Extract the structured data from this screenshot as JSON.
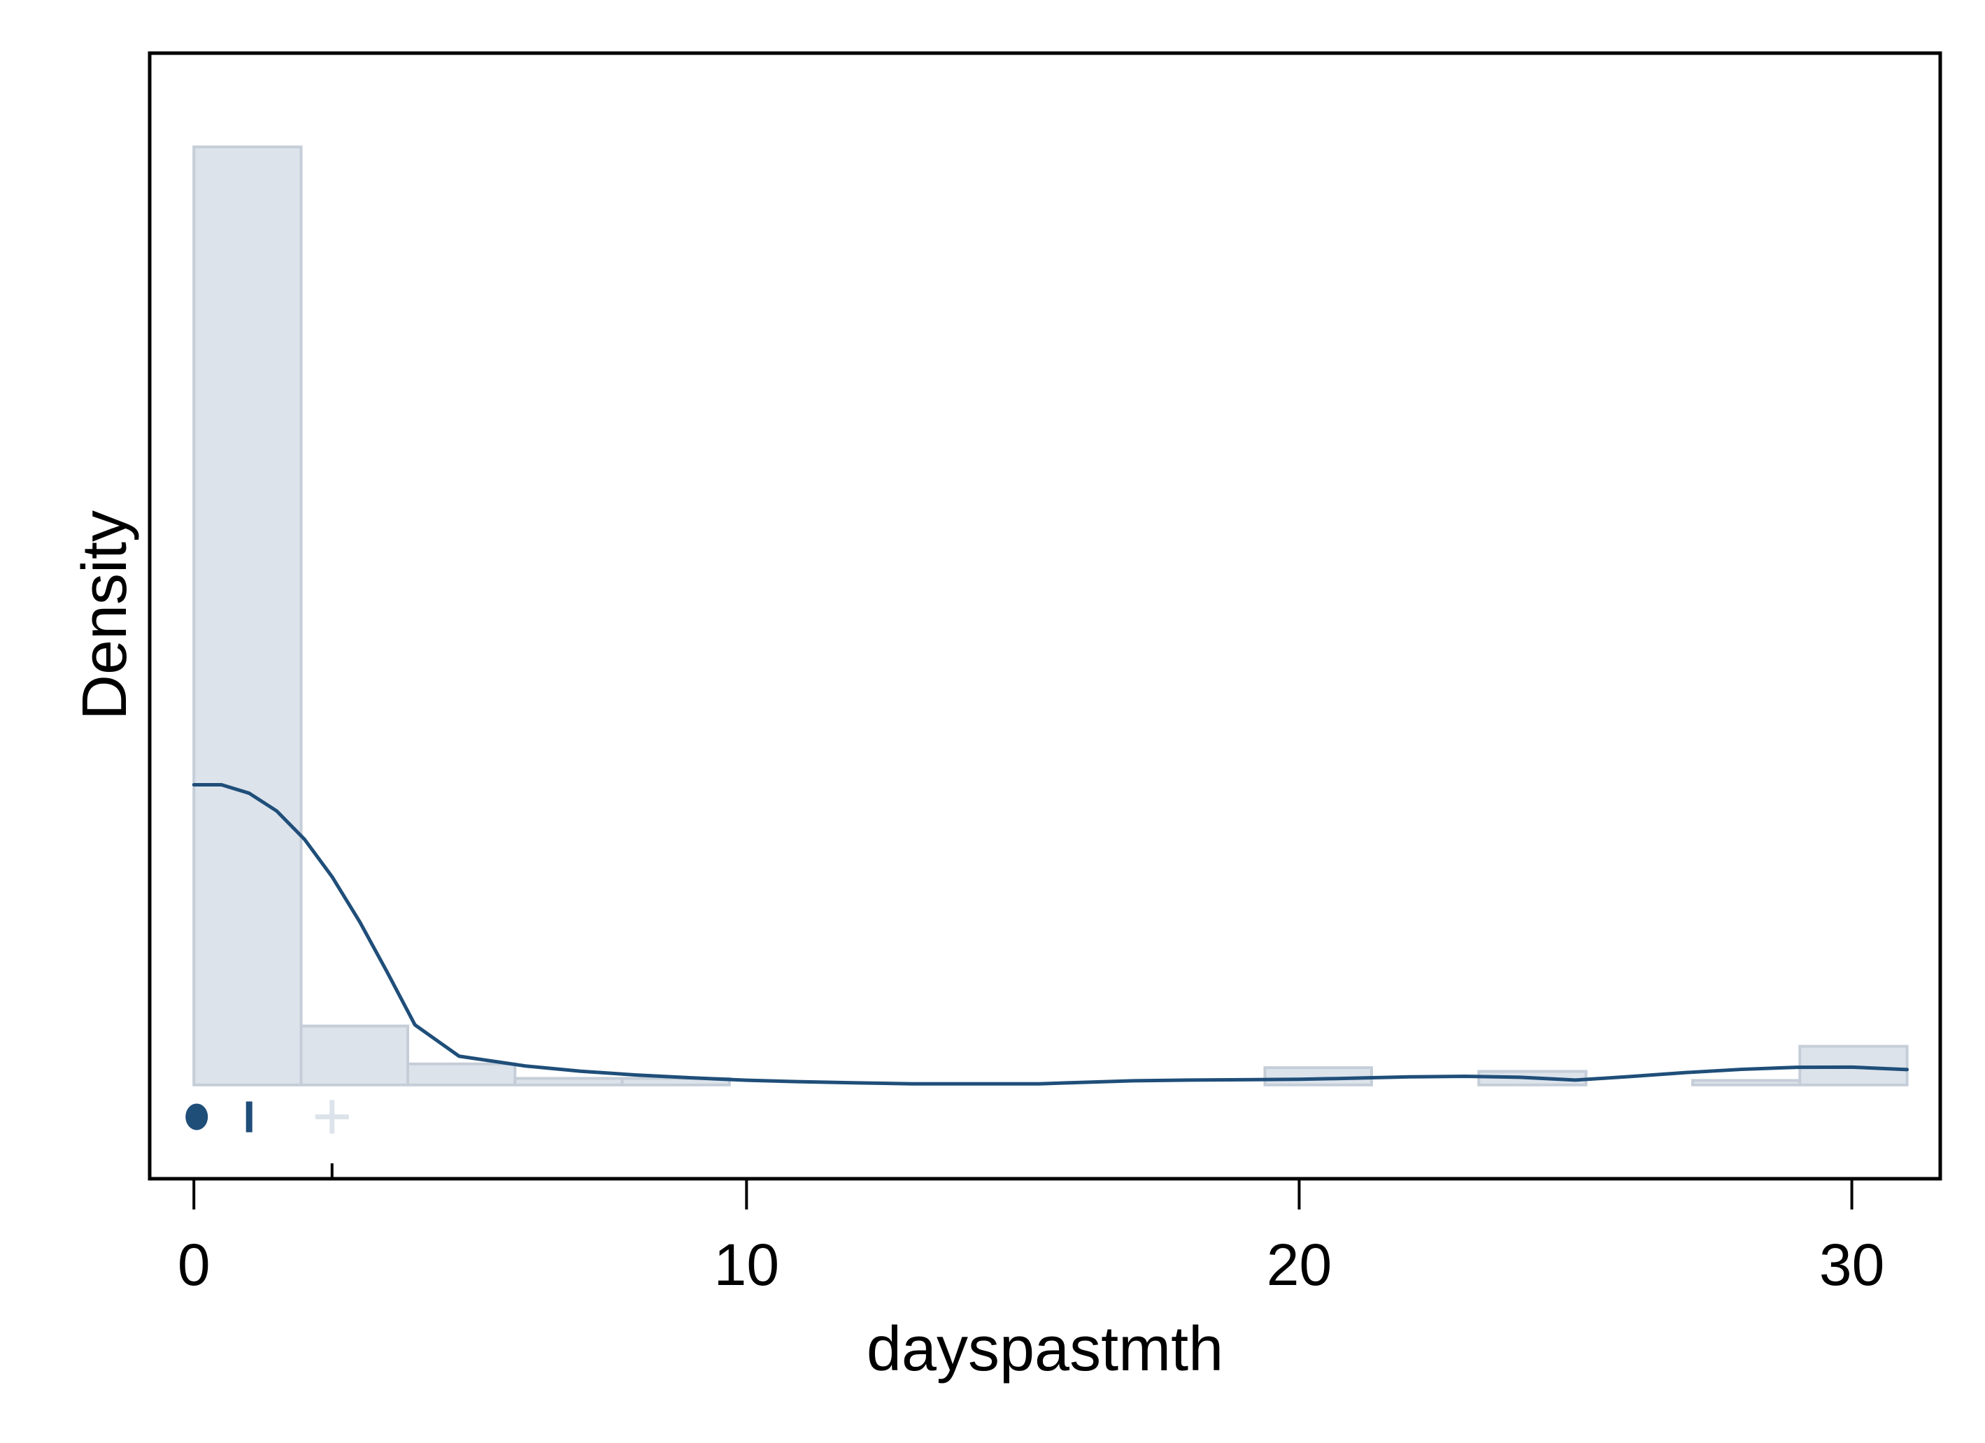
{
  "chart_data": {
    "type": "histogram",
    "title": "",
    "xlabel": "dayspastmth",
    "ylabel": "Density",
    "xlim": [
      -0.8,
      31.6
    ],
    "ylim": [
      -0.05,
      0.55
    ],
    "x_ticks": [
      0,
      10,
      20,
      30
    ],
    "x_tick_labels": [
      "0",
      "10",
      "20",
      "30"
    ],
    "y_ticks_shown": false,
    "grid": false,
    "bins": [
      {
        "start": 0.0,
        "end": 1.94,
        "density": 0.5
      },
      {
        "start": 1.94,
        "end": 3.87,
        "density": 0.0314
      },
      {
        "start": 3.87,
        "end": 5.81,
        "density": 0.0112
      },
      {
        "start": 5.81,
        "end": 7.75,
        "density": 0.0035
      },
      {
        "start": 7.75,
        "end": 9.69,
        "density": 0.0035
      },
      {
        "start": 9.69,
        "end": 11.62,
        "density": 0
      },
      {
        "start": 11.62,
        "end": 13.56,
        "density": 0
      },
      {
        "start": 13.56,
        "end": 15.5,
        "density": 0
      },
      {
        "start": 15.5,
        "end": 17.44,
        "density": 0
      },
      {
        "start": 17.44,
        "end": 19.38,
        "density": 0
      },
      {
        "start": 19.38,
        "end": 21.31,
        "density": 0.0092
      },
      {
        "start": 21.31,
        "end": 23.25,
        "density": 0
      },
      {
        "start": 23.25,
        "end": 25.19,
        "density": 0.0072
      },
      {
        "start": 25.19,
        "end": 27.12,
        "density": 0
      },
      {
        "start": 27.12,
        "end": 29.06,
        "density": 0.0024
      },
      {
        "start": 29.06,
        "end": 31.0,
        "density": 0.0206
      }
    ],
    "kde": {
      "x": [
        0,
        0.5,
        1,
        1.5,
        2,
        2.5,
        3,
        3.5,
        4,
        4.8,
        6,
        7,
        8,
        9,
        10,
        11,
        12,
        13,
        14,
        15.3,
        16,
        17,
        18,
        19,
        20,
        21,
        22,
        23,
        24,
        25,
        26,
        27,
        28,
        29,
        30,
        31
      ],
      "y": [
        0.16,
        0.16,
        0.1555,
        0.146,
        0.131,
        0.111,
        0.087,
        0.06,
        0.032,
        0.0153,
        0.0101,
        0.0073,
        0.0053,
        0.0038,
        0.0025,
        0.0017,
        0.0011,
        0.0006,
        0.0006,
        0.0006,
        0.0013,
        0.0022,
        0.0026,
        0.0028,
        0.003,
        0.0036,
        0.0043,
        0.0046,
        0.0041,
        0.0026,
        0.0045,
        0.0066,
        0.0083,
        0.0094,
        0.0095,
        0.0082
      ]
    },
    "summary_markers": [
      {
        "name": "median",
        "symbol": "circle",
        "x": 0,
        "color": "#1f4e79"
      },
      {
        "name": "quartile",
        "symbol": "bar",
        "x": 1,
        "color": "#1f4e79"
      },
      {
        "name": "mean",
        "symbol": "plus",
        "x": 2.5,
        "color": "#dce3eb"
      }
    ],
    "colors": {
      "bar_fill": "#dce3eb",
      "bar_stroke": "#c5ced8",
      "kde_line": "#1f4e79",
      "frame": "#000000"
    }
  }
}
